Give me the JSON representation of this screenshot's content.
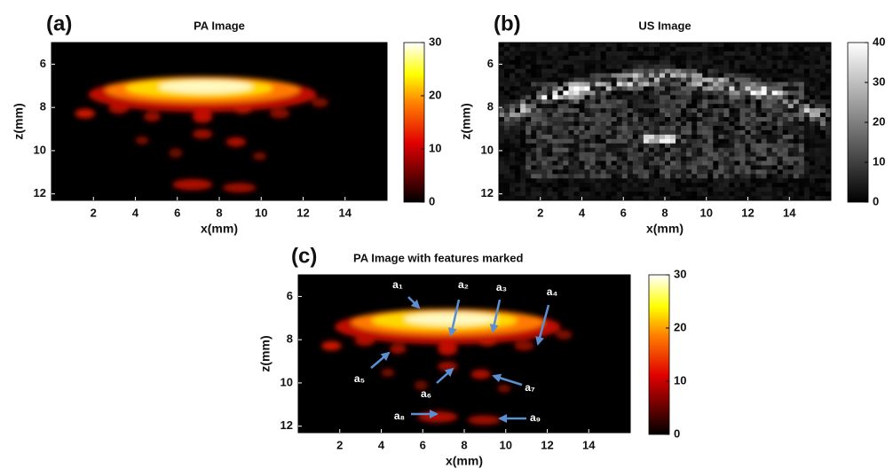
{
  "chart_data": [
    {
      "type": "heatmap",
      "panel_label": "(a)",
      "title": "PA Image",
      "xlabel": "x(mm)",
      "ylabel": "z(mm)",
      "xlim": [
        0,
        16
      ],
      "xticks": [
        2,
        4,
        6,
        8,
        10,
        12,
        14
      ],
      "ylim": [
        5,
        12.3
      ],
      "yticks": [
        6,
        8,
        10,
        12
      ],
      "colormap": "hot",
      "clim": [
        0,
        30
      ],
      "cticks": [
        0,
        10,
        20,
        30
      ]
    },
    {
      "type": "heatmap",
      "panel_label": "(b)",
      "title": "US Image",
      "xlabel": "x(mm)",
      "ylabel": "z(mm)",
      "xlim": [
        0,
        16
      ],
      "xticks": [
        2,
        4,
        6,
        8,
        10,
        12,
        14
      ],
      "ylim": [
        5,
        12.3
      ],
      "yticks": [
        6,
        8,
        10,
        12
      ],
      "colormap": "gray",
      "clim": [
        0,
        40
      ],
      "cticks": [
        0,
        10,
        20,
        30,
        40
      ]
    },
    {
      "type": "heatmap",
      "panel_label": "(c)",
      "title": "PA Image with features marked",
      "xlabel": "x(mm)",
      "ylabel": "z(mm)",
      "xlim": [
        0,
        16
      ],
      "xticks": [
        2,
        4,
        6,
        8,
        10,
        12,
        14
      ],
      "ylim": [
        5,
        12.3
      ],
      "yticks": [
        6,
        8,
        10,
        12
      ],
      "colormap": "hot",
      "clim": [
        0,
        30
      ],
      "cticks": [
        0,
        10,
        20,
        30
      ],
      "annotations": [
        "a₁",
        "a₂",
        "a₃",
        "a₄",
        "a₅",
        "a₆",
        "a₇",
        "a₈",
        "a₉"
      ]
    }
  ]
}
